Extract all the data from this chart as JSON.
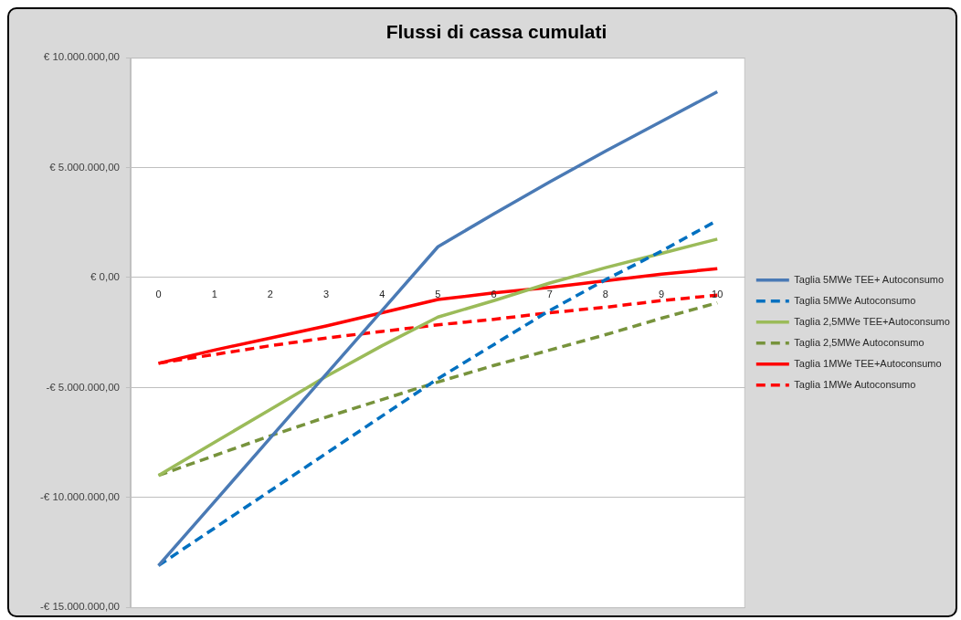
{
  "chart_data": {
    "type": "line",
    "title": "Flussi di cassa cumulati",
    "categories": [
      "0",
      "1",
      "2",
      "3",
      "4",
      "5",
      "6",
      "7",
      "8",
      "9",
      "10"
    ],
    "series": [
      {
        "name": "Taglia 5MWe TEE+ Autoconsumo",
        "color": "#4a7ab5",
        "line_style": "solid",
        "values": [
          -13100000,
          -10200000,
          -7300000,
          -4400000,
          -1500000,
          1400000,
          2900000,
          4350000,
          5750000,
          7100000,
          8450000
        ]
      },
      {
        "name": "Taglia 5MWe Autoconsumo",
        "color": "#0070c0",
        "line_style": "dashed",
        "values": [
          -13100000,
          -11400000,
          -9700000,
          -8000000,
          -6300000,
          -4600000,
          -3050000,
          -1500000,
          -100000,
          1200000,
          2600000
        ]
      },
      {
        "name": "Taglia 2,5MWe TEE+Autoconsumo",
        "color": "#9bbb59",
        "line_style": "solid",
        "values": [
          -9000000,
          -7500000,
          -6000000,
          -4500000,
          -3100000,
          -1800000,
          -1050000,
          -250000,
          450000,
          1100000,
          1750000
        ]
      },
      {
        "name": "Taglia 2,5MWe Autoconsumo",
        "color": "#77933c",
        "line_style": "dashed",
        "values": [
          -9000000,
          -8100000,
          -7200000,
          -6350000,
          -5550000,
          -4750000,
          -4000000,
          -3300000,
          -2600000,
          -1850000,
          -1150000
        ]
      },
      {
        "name": "Taglia 1MWe TEE+Autoconsumo",
        "color": "#ff0000",
        "line_style": "solid",
        "values": [
          -3900000,
          -3300000,
          -2750000,
          -2200000,
          -1600000,
          -1000000,
          -700000,
          -450000,
          -150000,
          150000,
          400000
        ]
      },
      {
        "name": "Taglia 1MWe Autoconsumo",
        "color": "#ff0000",
        "line_style": "dashed",
        "values": [
          -3900000,
          -3500000,
          -3100000,
          -2750000,
          -2450000,
          -2150000,
          -1900000,
          -1600000,
          -1350000,
          -1050000,
          -800000
        ]
      }
    ],
    "ylim": [
      -15000000,
      10000000
    ],
    "yticks": [
      {
        "value": -15000000,
        "label": "-€ 15.000.000,00"
      },
      {
        "value": -10000000,
        "label": "-€ 10.000.000,00"
      },
      {
        "value": -5000000,
        "label": "-€ 5.000.000,00"
      },
      {
        "value": 0,
        "label": "€ 0,00"
      },
      {
        "value": 5000000,
        "label": "€ 5.000.000,00"
      },
      {
        "value": 10000000,
        "label": "€ 10.000.000,00"
      }
    ],
    "grid": "y",
    "legend": "right",
    "marker": "none"
  }
}
